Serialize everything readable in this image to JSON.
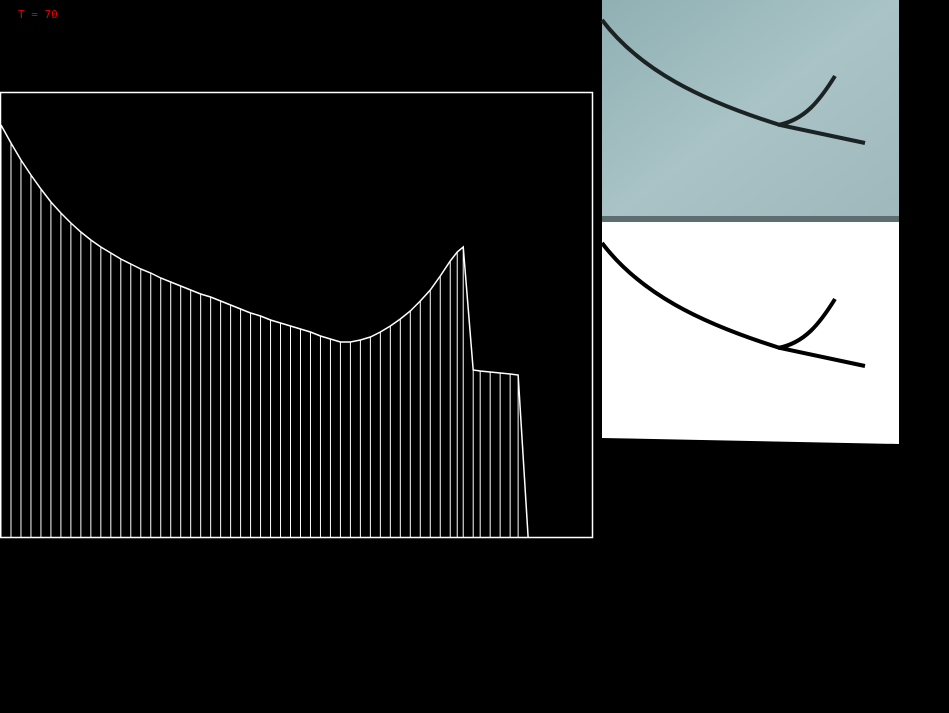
{
  "status_label": "T = 70",
  "chart_data": {
    "type": "line",
    "x": [
      0,
      10,
      20,
      30,
      40,
      50,
      60,
      70,
      80,
      90,
      100,
      110,
      120,
      130,
      140,
      150,
      160,
      170,
      180,
      190,
      200,
      210,
      220,
      230,
      240,
      250,
      260,
      270,
      280,
      290,
      300,
      310,
      320,
      330,
      340,
      350,
      360,
      370,
      380,
      390,
      400,
      410,
      420,
      430,
      440,
      450,
      457,
      463,
      473,
      480,
      490,
      500,
      510,
      518,
      528
    ],
    "values": [
      412,
      394,
      377,
      362,
      348,
      335,
      324,
      314,
      305,
      297,
      290,
      284,
      278,
      273,
      268,
      264,
      259,
      255,
      251,
      247,
      243,
      240,
      236,
      232,
      228,
      224,
      221,
      217,
      214,
      211,
      208,
      205,
      201,
      198,
      195,
      195,
      197,
      200,
      205,
      211,
      218,
      226,
      236,
      247,
      261,
      276,
      285,
      290,
      167,
      166,
      165,
      164,
      163,
      162,
      0
    ],
    "xlim": [
      0,
      592
    ],
    "ylim": [
      0,
      445
    ],
    "color": "#ffffff"
  }
}
